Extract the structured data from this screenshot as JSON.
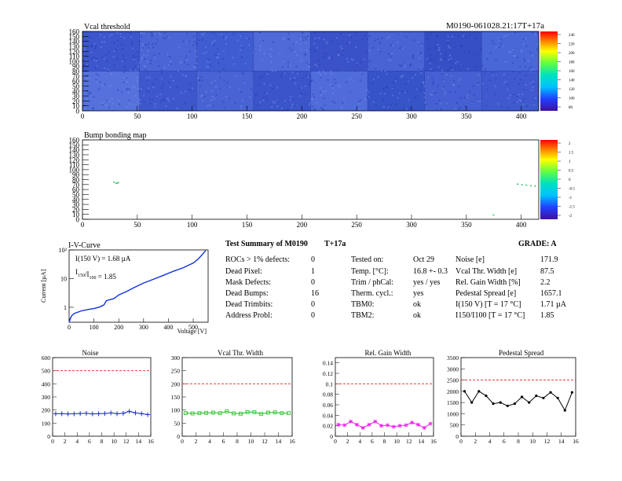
{
  "header": {
    "module_id": "M0190-061028.21:17T+17a"
  },
  "colors": {
    "plot_bg_gradient_low": "#1e2bb8",
    "plot_bg_gradient_high": "#6f8fe6",
    "limit_line": "#e02020",
    "noise_series": "#2030d0",
    "vcal_series": "#20c020",
    "gain_series": "#f020f0",
    "ped_series": "#000000"
  },
  "chart_data": [
    {
      "id": "vcal_threshold",
      "type": "heatmap",
      "title": "Vcal threshold",
      "xlim": [
        0,
        416
      ],
      "ylim": [
        0,
        160
      ],
      "x_ticks": [
        "0",
        "50",
        "100",
        "150",
        "200",
        "250",
        "300",
        "350",
        "400"
      ],
      "y_ticks": [
        "0",
        "10",
        "20",
        "30",
        "40",
        "50",
        "60",
        "70",
        "80",
        "90",
        "100",
        "110",
        "120",
        "130",
        "140",
        "150",
        "160"
      ],
      "palette_labels": [
        "240",
        "220",
        "200",
        "180",
        "160",
        "140",
        "120",
        "100",
        "80"
      ]
    },
    {
      "id": "bump_bonding",
      "type": "heatmap",
      "title": "Bump bonding map",
      "xlim": [
        0,
        416
      ],
      "ylim": [
        0,
        160
      ],
      "x_ticks": [
        "0",
        "50",
        "100",
        "150",
        "200",
        "250",
        "300",
        "350",
        "400"
      ],
      "y_ticks": [
        "0",
        "10",
        "20",
        "30",
        "40",
        "50",
        "60",
        "70",
        "80",
        "90",
        "100",
        "110",
        "120",
        "130",
        "140",
        "150",
        "160"
      ],
      "palette_labels": [
        "2",
        "1.5",
        "1",
        "0.5",
        "0",
        "-0.5",
        "-1",
        "-1.5",
        "-2"
      ],
      "dead_bump_points": [
        [
          28,
          76
        ],
        [
          30,
          74
        ],
        [
          32,
          75
        ],
        [
          31,
          74
        ],
        [
          396,
          72
        ],
        [
          400,
          71
        ],
        [
          404,
          70
        ],
        [
          408,
          69
        ],
        [
          412,
          68
        ],
        [
          374,
          10
        ]
      ]
    },
    {
      "id": "iv_curve",
      "type": "line",
      "title": "I-V-Curve",
      "xlabel": "Voltage [V]",
      "ylabel": "Current [µA]",
      "xlim": [
        0,
        560
      ],
      "ylim": [
        0.3,
        100
      ],
      "y_scale": "log",
      "x_ticks": [
        "0",
        "100",
        "200",
        "300",
        "400",
        "500"
      ],
      "y_ticks": [
        "1",
        "10",
        "10²"
      ],
      "annotations": {
        "i150": "I(150 V) = 1.68 µA",
        "ratio_pre": "I",
        "ratio_sub1": "150",
        "ratio_mid": "/I",
        "ratio_sub2": "100",
        "ratio_post": " = 1.85"
      },
      "series": [
        {
          "x": [
            0,
            5,
            10,
            20,
            30,
            50,
            80,
            100,
            120,
            140,
            150,
            160,
            170,
            180,
            190,
            200,
            230,
            260,
            300,
            340,
            380,
            420,
            460,
            500,
            520,
            540,
            550
          ],
          "y": [
            0.3,
            0.4,
            0.5,
            0.6,
            0.65,
            0.75,
            0.85,
            0.9,
            1.0,
            1.2,
            1.68,
            1.8,
            1.9,
            2.0,
            2.3,
            2.7,
            3.5,
            4.8,
            7.0,
            9.5,
            13,
            18,
            24,
            35,
            48,
            75,
            95
          ]
        }
      ]
    },
    {
      "id": "noise",
      "type": "line",
      "title": "Noise",
      "xlim": [
        0,
        16
      ],
      "ylim": [
        0,
        600
      ],
      "x_ticks": [
        "0",
        "2",
        "4",
        "6",
        "8",
        "10",
        "12",
        "14",
        "16"
      ],
      "y_ticks": [
        "0",
        "100",
        "200",
        "300",
        "400",
        "500",
        "600"
      ],
      "limit": 500,
      "series": [
        {
          "x": [
            0,
            1,
            2,
            3,
            4,
            5,
            6,
            7,
            8,
            9,
            10,
            11,
            12,
            13,
            14,
            15
          ],
          "y": [
            172,
            172,
            170,
            171,
            173,
            175,
            170,
            172,
            173,
            178,
            172,
            175,
            190,
            178,
            172,
            165
          ]
        }
      ]
    },
    {
      "id": "vcal_width",
      "type": "line",
      "title": "Vcal Thr. Width",
      "xlim": [
        0,
        16
      ],
      "ylim": [
        0,
        300
      ],
      "x_ticks": [
        "0",
        "2",
        "4",
        "6",
        "8",
        "10",
        "12",
        "14",
        "16"
      ],
      "y_ticks": [
        "0",
        "50",
        "100",
        "150",
        "200",
        "250",
        "300"
      ],
      "limit": 200,
      "series": [
        {
          "x": [
            0,
            1,
            2,
            3,
            4,
            5,
            6,
            7,
            8,
            9,
            10,
            11,
            12,
            13,
            14,
            15
          ],
          "y": [
            88,
            87,
            88,
            89,
            90,
            88,
            95,
            87,
            86,
            92,
            92,
            85,
            90,
            91,
            88,
            88
          ]
        }
      ]
    },
    {
      "id": "gain_width",
      "type": "line",
      "title": "Rel. Gain Width",
      "xlim": [
        0,
        16
      ],
      "ylim": [
        0,
        0.15
      ],
      "x_ticks": [
        "0",
        "2",
        "4",
        "6",
        "8",
        "10",
        "12",
        "14",
        "16"
      ],
      "y_ticks": [
        "0",
        "0.02",
        "0.04",
        "0.06",
        "0.08",
        "0.1",
        "0.12",
        "0.14"
      ],
      "limit": 0.1,
      "series": [
        {
          "x": [
            0,
            1,
            2,
            3,
            4,
            5,
            6,
            7,
            8,
            9,
            10,
            11,
            12,
            13,
            14,
            15
          ],
          "y": [
            0.022,
            0.021,
            0.028,
            0.022,
            0.016,
            0.022,
            0.028,
            0.02,
            0.021,
            0.018,
            0.02,
            0.021,
            0.026,
            0.022,
            0.016,
            0.024
          ]
        }
      ]
    },
    {
      "id": "pedestal_spread",
      "type": "line",
      "title": "Pedestal Spread",
      "xlim": [
        0,
        16
      ],
      "ylim": [
        0,
        3500
      ],
      "x_ticks": [
        "0",
        "2",
        "4",
        "6",
        "8",
        "10",
        "12",
        "14",
        "16"
      ],
      "y_ticks": [
        "0",
        "500",
        "1000",
        "1500",
        "2000",
        "2500",
        "3000",
        "3500"
      ],
      "limit": 2500,
      "series": [
        {
          "x": [
            0,
            1,
            2,
            3,
            4,
            5,
            6,
            7,
            8,
            9,
            10,
            11,
            12,
            13,
            14,
            15
          ],
          "y": [
            2000,
            1500,
            2000,
            1800,
            1450,
            1500,
            1350,
            1450,
            1750,
            1500,
            1800,
            1700,
            1950,
            1700,
            1150,
            1950
          ]
        }
      ]
    }
  ],
  "summary": {
    "title": "Test Summary of M0190",
    "suffix": "T+17a",
    "grade": "GRADE:  A",
    "defects": [
      {
        "label": "ROCs > 1% defects:",
        "value": "0"
      },
      {
        "label": "Dead Pixel:",
        "value": "1"
      },
      {
        "label": "Mask Defects:",
        "value": "0"
      },
      {
        "label": "Dead Bumps:",
        "value": "16"
      },
      {
        "label": "Dead Trimbits:",
        "value": "0"
      },
      {
        "label": "Address Probl:",
        "value": "0"
      }
    ],
    "conditions": [
      {
        "label": "Tested on:",
        "value": "Oct 29"
      },
      {
        "label": "Temp. [°C]:",
        "value": "16.8 +- 0.3"
      },
      {
        "label": "Trim / phCal:",
        "value": "yes / yes"
      },
      {
        "label": "Therm. cycl.:",
        "value": "yes"
      },
      {
        "label": "TBM0:",
        "value": "ok"
      },
      {
        "label": "TBM2:",
        "value": "ok"
      }
    ],
    "results": [
      {
        "label": "Noise [e]",
        "value": "171.9"
      },
      {
        "label": "Vcal Thr. Width [e]",
        "value": "87.5"
      },
      {
        "label": "Rel. Gain Width [%]",
        "value": "2.2"
      },
      {
        "label": "Pedestal Spread [e]",
        "value": "1657.1"
      },
      {
        "label": "I(150 V) [T = 17 °C]",
        "value": "1.71 µA"
      },
      {
        "label": "I150/I100   [T = 17 °C]",
        "value": "1.85"
      }
    ]
  }
}
